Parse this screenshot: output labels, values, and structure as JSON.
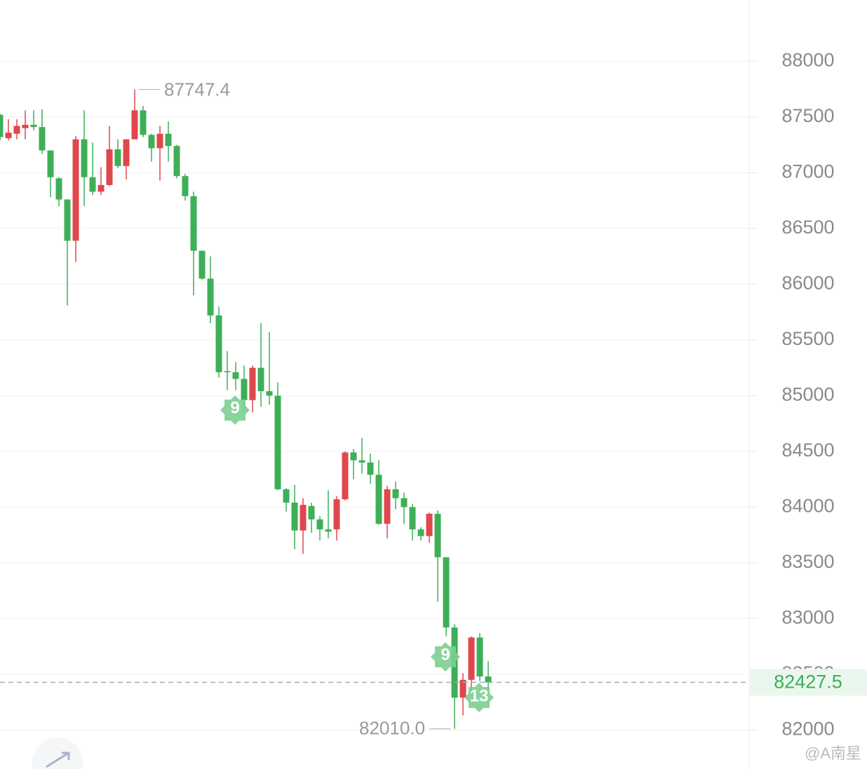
{
  "chart_data": {
    "type": "candlestick",
    "open": [
      87520,
      87310,
      87350,
      87400,
      87430,
      87410,
      87200,
      86950,
      86760,
      86390,
      87300,
      86960,
      86830,
      86890,
      87210,
      87060,
      87300,
      87560,
      87340,
      87220,
      87350,
      87240,
      86970,
      86790,
      86300,
      86050,
      85720,
      85220,
      85210,
      85150,
      84960,
      85250,
      85040,
      85000,
      84160,
      84040,
      83790,
      84010,
      83890,
      83800,
      83800,
      84070,
      84490,
      84420,
      84400,
      84290,
      83850,
      84160,
      84080,
      84000,
      83800,
      83740,
      83940,
      83550,
      82920,
      82290,
      82450,
      82830,
      82480
    ],
    "high": [
      87530,
      87480,
      87480,
      87560,
      87560,
      87570,
      87200,
      86960,
      86760,
      87330,
      87560,
      87270,
      87050,
      87420,
      87300,
      87300,
      87747.4,
      87600,
      87350,
      87420,
      87460,
      87250,
      86990,
      86830,
      86300,
      86250,
      85800,
      85400,
      85300,
      85270,
      85270,
      85650,
      85570,
      85120,
      84170,
      84200,
      84080,
      84040,
      83920,
      84150,
      84100,
      84500,
      84520,
      84620,
      84480,
      84420,
      84190,
      84230,
      84130,
      84030,
      83820,
      83950,
      83970,
      83550,
      82950,
      82510,
      82840,
      82870,
      82620
    ],
    "low": [
      87290,
      87290,
      87300,
      87300,
      87380,
      87170,
      86780,
      86700,
      85810,
      86200,
      86700,
      86800,
      86800,
      86880,
      87040,
      86940,
      87300,
      87320,
      87100,
      86930,
      87100,
      86950,
      86750,
      85900,
      86040,
      85650,
      85160,
      85050,
      85050,
      84850,
      84850,
      84900,
      84920,
      84150,
      83960,
      83620,
      83580,
      83770,
      83700,
      83720,
      83700,
      84060,
      84250,
      84300,
      84210,
      83840,
      83720,
      83980,
      83850,
      83700,
      83700,
      83680,
      83150,
      82840,
      82010,
      82130,
      82330,
      82440,
      82380
    ],
    "close": [
      87320,
      87360,
      87420,
      87430,
      87410,
      87200,
      86960,
      86760,
      86390,
      87300,
      86960,
      86830,
      86890,
      87210,
      87060,
      87300,
      87560,
      87340,
      87220,
      87350,
      87240,
      86970,
      86790,
      86300,
      86050,
      85720,
      85210,
      85210,
      85150,
      84960,
      85250,
      85040,
      85000,
      84160,
      84040,
      83790,
      84020,
      83890,
      83800,
      83780,
      84070,
      84490,
      84420,
      84400,
      84290,
      83850,
      84160,
      84080,
      84000,
      83800,
      83740,
      83940,
      83550,
      82920,
      82290,
      82450,
      82830,
      82480,
      82427.5
    ],
    "up_color": "#e0474c",
    "down_color": "#3daf57",
    "ylim": [
      81650,
      88550
    ],
    "yticks": [
      82000,
      82500,
      83000,
      83500,
      84000,
      84500,
      85000,
      85500,
      86000,
      86500,
      87000,
      87500,
      88000
    ],
    "grid": true,
    "max_label": "87747.4",
    "min_label": "82010.0",
    "last_label": "82427.5",
    "markers": [
      "9",
      "9",
      "13"
    ],
    "watermark": "@A南星"
  }
}
